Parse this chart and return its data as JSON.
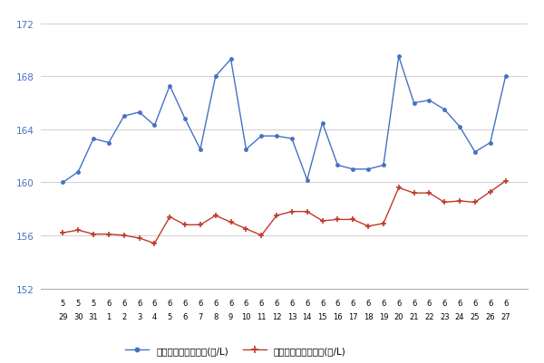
{
  "x_labels_top": [
    "5",
    "5",
    "5",
    "6",
    "6",
    "6",
    "6",
    "6",
    "6",
    "6",
    "6",
    "6",
    "6",
    "6",
    "6",
    "6",
    "6",
    "6",
    "6",
    "6",
    "6",
    "6",
    "6",
    "6",
    "6",
    "6",
    "6",
    "6",
    "6",
    "6"
  ],
  "x_labels_bottom": [
    "29",
    "30",
    "31",
    "1",
    "2",
    "3",
    "4",
    "5",
    "6",
    "7",
    "8",
    "9",
    "10",
    "11",
    "12",
    "13",
    "14",
    "15",
    "16",
    "17",
    "18",
    "19",
    "20",
    "21",
    "22",
    "23",
    "24",
    "25",
    "26",
    "27"
  ],
  "blue_y": [
    160.0,
    160.8,
    163.3,
    163.0,
    165.0,
    165.3,
    164.3,
    167.3,
    164.8,
    162.5,
    168.0,
    169.3,
    162.5,
    163.5,
    163.5,
    163.3,
    160.2,
    164.5,
    161.3,
    161.0,
    161.0,
    161.3,
    169.5,
    166.0,
    166.2,
    165.5,
    164.2,
    162.3,
    163.0,
    168.0
  ],
  "red_y": [
    156.2,
    156.4,
    156.1,
    156.1,
    156.0,
    155.8,
    155.4,
    157.4,
    156.8,
    156.8,
    157.5,
    157.0,
    156.5,
    156.0,
    157.5,
    157.8,
    157.8,
    157.1,
    157.2,
    157.2,
    156.7,
    156.9,
    159.6,
    159.2,
    159.2,
    158.5,
    158.6,
    158.5,
    159.3,
    160.1
  ],
  "blue_label": "レギュラー看板価格(円/L)",
  "red_label": "レギュラー実売価格(円/L)",
  "blue_color": "#4472c4",
  "red_color": "#c0392b",
  "ylim": [
    152,
    173
  ],
  "yticks": [
    152,
    156,
    160,
    164,
    168,
    172
  ],
  "bg_color": "#ffffff",
  "grid_color": "#d0d0d0"
}
